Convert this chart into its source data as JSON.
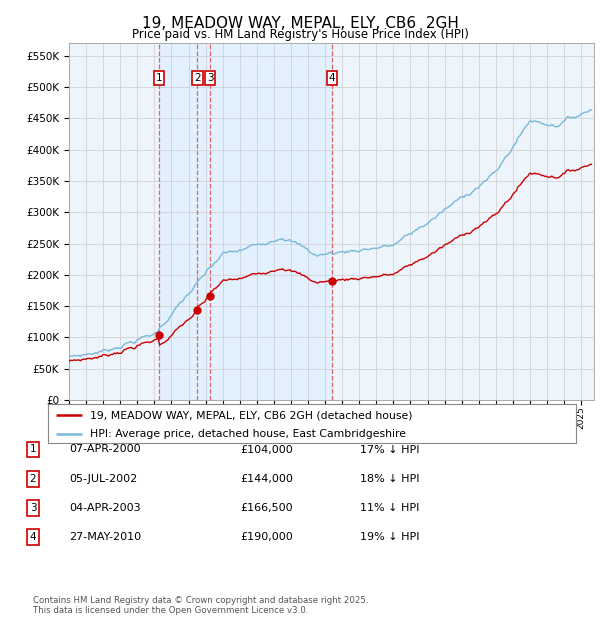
{
  "title": "19, MEADOW WAY, MEPAL, ELY, CB6  2GH",
  "subtitle": "Price paid vs. HM Land Registry's House Price Index (HPI)",
  "yticks": [
    0,
    50000,
    100000,
    150000,
    200000,
    250000,
    300000,
    350000,
    400000,
    450000,
    500000,
    550000
  ],
  "ylim": [
    0,
    570000
  ],
  "xlim": [
    1995,
    2025.75
  ],
  "sale_times": [
    2000.27,
    2002.51,
    2003.26,
    2010.41
  ],
  "sale_prices": [
    104000,
    144000,
    166500,
    190000
  ],
  "sale_labels": [
    "1",
    "2",
    "3",
    "4"
  ],
  "legend_entries": [
    "19, MEADOW WAY, MEPAL, ELY, CB6 2GH (detached house)",
    "HPI: Average price, detached house, East Cambridgeshire"
  ],
  "table_rows": [
    [
      "1",
      "07-APR-2000",
      "£104,000",
      "17% ↓ HPI"
    ],
    [
      "2",
      "05-JUL-2002",
      "£144,000",
      "18% ↓ HPI"
    ],
    [
      "3",
      "04-APR-2003",
      "£166,500",
      "11% ↓ HPI"
    ],
    [
      "4",
      "27-MAY-2010",
      "£190,000",
      "19% ↓ HPI"
    ]
  ],
  "footer": "Contains HM Land Registry data © Crown copyright and database right 2025.\nThis data is licensed under the Open Government Licence v3.0.",
  "hpi_color": "#7ab8d9",
  "sale_color": "#cc0000",
  "vline_color": "#dd6666",
  "shade_color": "#ddeeff",
  "plot_bg_color": "#eef4fb"
}
